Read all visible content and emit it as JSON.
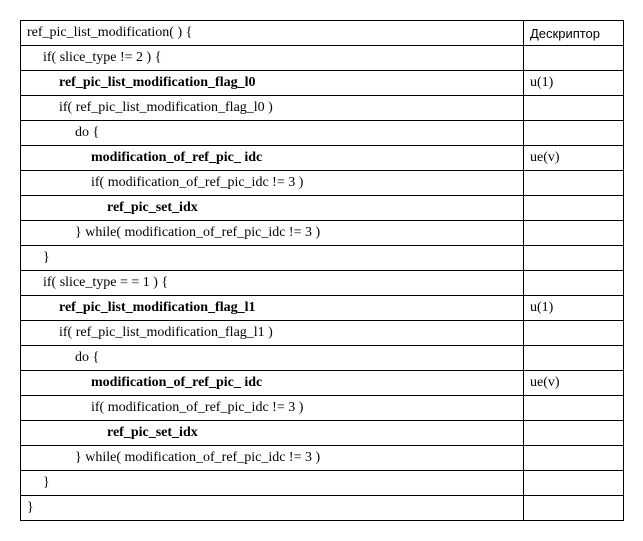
{
  "table": {
    "header": {
      "descriptor": "Дескриптор"
    },
    "rows": [
      {
        "code": "ref_pic_list_modification( ) {",
        "desc": "",
        "indent": 0,
        "bold": false
      },
      {
        "code": "if( slice_type  != 2 ) {",
        "desc": "",
        "indent": 1,
        "bold": false
      },
      {
        "code": "ref_pic_list_modification_flag_l0",
        "desc": "u(1)",
        "indent": 2,
        "bold": true
      },
      {
        "code": "if( ref_pic_list_modification_flag_l0 )",
        "desc": "",
        "indent": 2,
        "bold": false
      },
      {
        "code": "do {",
        "desc": "",
        "indent": 3,
        "bold": false
      },
      {
        "code": "modification_of_ref_pic_ idc",
        "desc": "ue(v)",
        "indent": 4,
        "bold": true
      },
      {
        "code": "if( modification_of_ref_pic_idc  != 3 )",
        "desc": "",
        "indent": 4,
        "bold": false
      },
      {
        "code": "ref_pic_set_idx",
        "desc": "",
        "indent": 5,
        "bold": true
      },
      {
        "code": "} while( modification_of_ref_pic_idc  != 3 )",
        "desc": "",
        "indent": 3,
        "bold": false
      },
      {
        "code": "}",
        "desc": "",
        "indent": 1,
        "bold": false
      },
      {
        "code": "if( slice_type  = = 1 ) {",
        "desc": "",
        "indent": 1,
        "bold": false
      },
      {
        "code": "ref_pic_list_modification_flag_l1",
        "desc": "u(1)",
        "indent": 2,
        "bold": true
      },
      {
        "code": "if( ref_pic_list_modification_flag_l1 )",
        "desc": "",
        "indent": 2,
        "bold": false
      },
      {
        "code": "do {",
        "desc": "",
        "indent": 3,
        "bold": false
      },
      {
        "code": "modification_of_ref_pic_ idc",
        "desc": "ue(v)",
        "indent": 4,
        "bold": true
      },
      {
        "code": "if( modification_of_ref_pic_idc  != 3 )",
        "desc": "",
        "indent": 4,
        "bold": false
      },
      {
        "code": "ref_pic_set_idx",
        "desc": "",
        "indent": 5,
        "bold": true
      },
      {
        "code": "} while( modification_of_ref_pic_idc  != 3 )",
        "desc": "",
        "indent": 3,
        "bold": false
      },
      {
        "code": "}",
        "desc": "",
        "indent": 1,
        "bold": false
      },
      {
        "code": "}",
        "desc": "",
        "indent": 0,
        "bold": false
      }
    ]
  },
  "style": {
    "border_color": "#000000",
    "background_color": "#ffffff",
    "font_family_code": "Times New Roman",
    "font_family_header": "Arial",
    "font_size_pt": 11
  }
}
